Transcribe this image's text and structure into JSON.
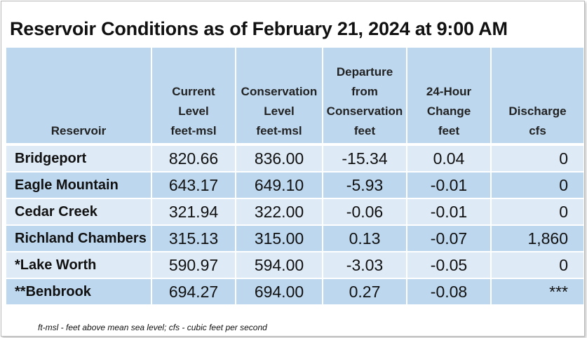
{
  "title": "Reservoir Conditions as of February 21, 2024 at 9:00 AM",
  "columns": [
    {
      "lines": [
        "Reservoir"
      ]
    },
    {
      "lines": [
        "Current",
        "Level",
        "feet-msl"
      ]
    },
    {
      "lines": [
        "Conservation",
        "Level",
        "feet-msl"
      ]
    },
    {
      "lines": [
        "Departure",
        "from",
        "Conservation",
        "feet"
      ]
    },
    {
      "lines": [
        "24-Hour",
        "Change",
        "feet"
      ]
    },
    {
      "lines": [
        "Discharge",
        "cfs"
      ]
    }
  ],
  "rows": [
    {
      "name": "Bridgeport",
      "current": "820.66",
      "conservation": "836.00",
      "departure": "-15.34",
      "change": "0.04",
      "discharge": "0"
    },
    {
      "name": "Eagle Mountain",
      "current": "643.17",
      "conservation": "649.10",
      "departure": "-5.93",
      "change": "-0.01",
      "discharge": "0"
    },
    {
      "name": "Cedar Creek",
      "current": "321.94",
      "conservation": "322.00",
      "departure": "-0.06",
      "change": "-0.01",
      "discharge": "0"
    },
    {
      "name": "Richland Chambers",
      "current": "315.13",
      "conservation": "315.00",
      "departure": "0.13",
      "change": "-0.07",
      "discharge": "1,860"
    },
    {
      "name": "*Lake Worth",
      "current": "590.97",
      "conservation": "594.00",
      "departure": "-3.03",
      "change": "-0.05",
      "discharge": "0"
    },
    {
      "name": "**Benbrook",
      "current": "694.27",
      "conservation": "694.00",
      "departure": "0.27",
      "change": "-0.08",
      "discharge": "***"
    }
  ],
  "footnote": "ft-msl - feet above mean sea level; cfs - cubic feet per second",
  "colors": {
    "header_bg": "#bdd7ee",
    "row_light": "#deeaf6",
    "row_dark": "#bdd7ee"
  }
}
